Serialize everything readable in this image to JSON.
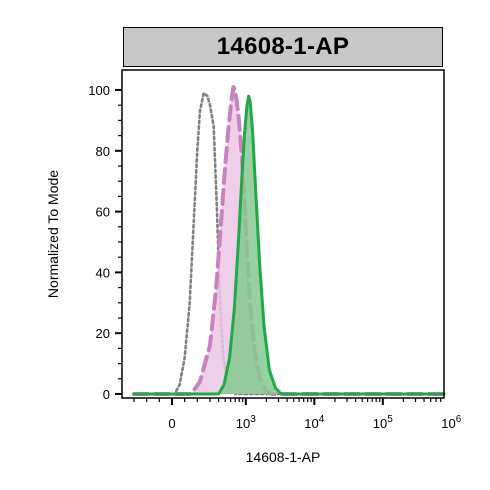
{
  "title": "14608-1-AP",
  "chart_data": {
    "type": "area",
    "title": "14608-1-AP",
    "xlabel": "14608-1-AP",
    "ylabel": "Normalized To Mode",
    "x_scale": "biexponential",
    "xlim": [
      -300,
      1200000
    ],
    "ylim": [
      0,
      105
    ],
    "y_ticks": [
      0,
      20,
      40,
      60,
      80,
      100
    ],
    "x_tick_labels": [
      {
        "label": "0",
        "value": 0
      },
      {
        "label": "10",
        "exp": "3",
        "value": 1000
      },
      {
        "label": "10",
        "exp": "4",
        "value": 10000
      },
      {
        "label": "10",
        "exp": "5",
        "value": 100000
      },
      {
        "label": "10",
        "exp": "6",
        "value": 1000000
      }
    ],
    "grid": false,
    "legend": "none",
    "series": [
      {
        "style": "dotted",
        "color": "#808080",
        "fill": "none",
        "points": [
          [
            -300,
            0
          ],
          [
            20,
            0
          ],
          [
            60,
            3
          ],
          [
            100,
            12
          ],
          [
            140,
            30
          ],
          [
            170,
            55
          ],
          [
            200,
            80
          ],
          [
            220,
            93
          ],
          [
            250,
            99
          ],
          [
            280,
            98
          ],
          [
            300,
            95
          ],
          [
            340,
            88
          ],
          [
            380,
            60
          ],
          [
            420,
            30
          ],
          [
            470,
            12
          ],
          [
            550,
            3
          ],
          [
            700,
            0
          ],
          [
            1000000,
            0
          ]
        ]
      },
      {
        "style": "dashed",
        "color": "#c882c2",
        "fill": "#ecc6e6",
        "points": [
          [
            -300,
            0
          ],
          [
            150,
            0
          ],
          [
            220,
            4
          ],
          [
            300,
            16
          ],
          [
            370,
            35
          ],
          [
            430,
            55
          ],
          [
            500,
            75
          ],
          [
            560,
            88
          ],
          [
            620,
            97
          ],
          [
            660,
            101
          ],
          [
            700,
            100
          ],
          [
            780,
            92
          ],
          [
            880,
            78
          ],
          [
            1000,
            55
          ],
          [
            1150,
            30
          ],
          [
            1350,
            14
          ],
          [
            1600,
            5
          ],
          [
            2000,
            1
          ],
          [
            2400,
            0
          ],
          [
            1000000,
            0
          ]
        ]
      },
      {
        "style": "solid",
        "color": "#22a84a",
        "fill": "#85c98e",
        "points": [
          [
            -300,
            0
          ],
          [
            400,
            0
          ],
          [
            480,
            3
          ],
          [
            580,
            12
          ],
          [
            680,
            28
          ],
          [
            780,
            50
          ],
          [
            880,
            72
          ],
          [
            960,
            86
          ],
          [
            1040,
            95
          ],
          [
            1100,
            98
          ],
          [
            1160,
            96
          ],
          [
            1260,
            86
          ],
          [
            1400,
            66
          ],
          [
            1600,
            42
          ],
          [
            1850,
            22
          ],
          [
            2200,
            8
          ],
          [
            2700,
            2
          ],
          [
            3300,
            0
          ],
          [
            1000000,
            0
          ]
        ]
      }
    ]
  }
}
